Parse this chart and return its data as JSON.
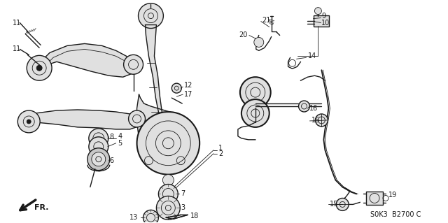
{
  "bg_color": "#ffffff",
  "line_color": "#1a1a1a",
  "footer_code": "S0K3  B2700 C",
  "fr_label": "FR.",
  "label_fontsize": 7.0,
  "gray_fill": "#c8c8c8",
  "light_gray": "#e0e0e0",
  "dark_gray": "#888888"
}
